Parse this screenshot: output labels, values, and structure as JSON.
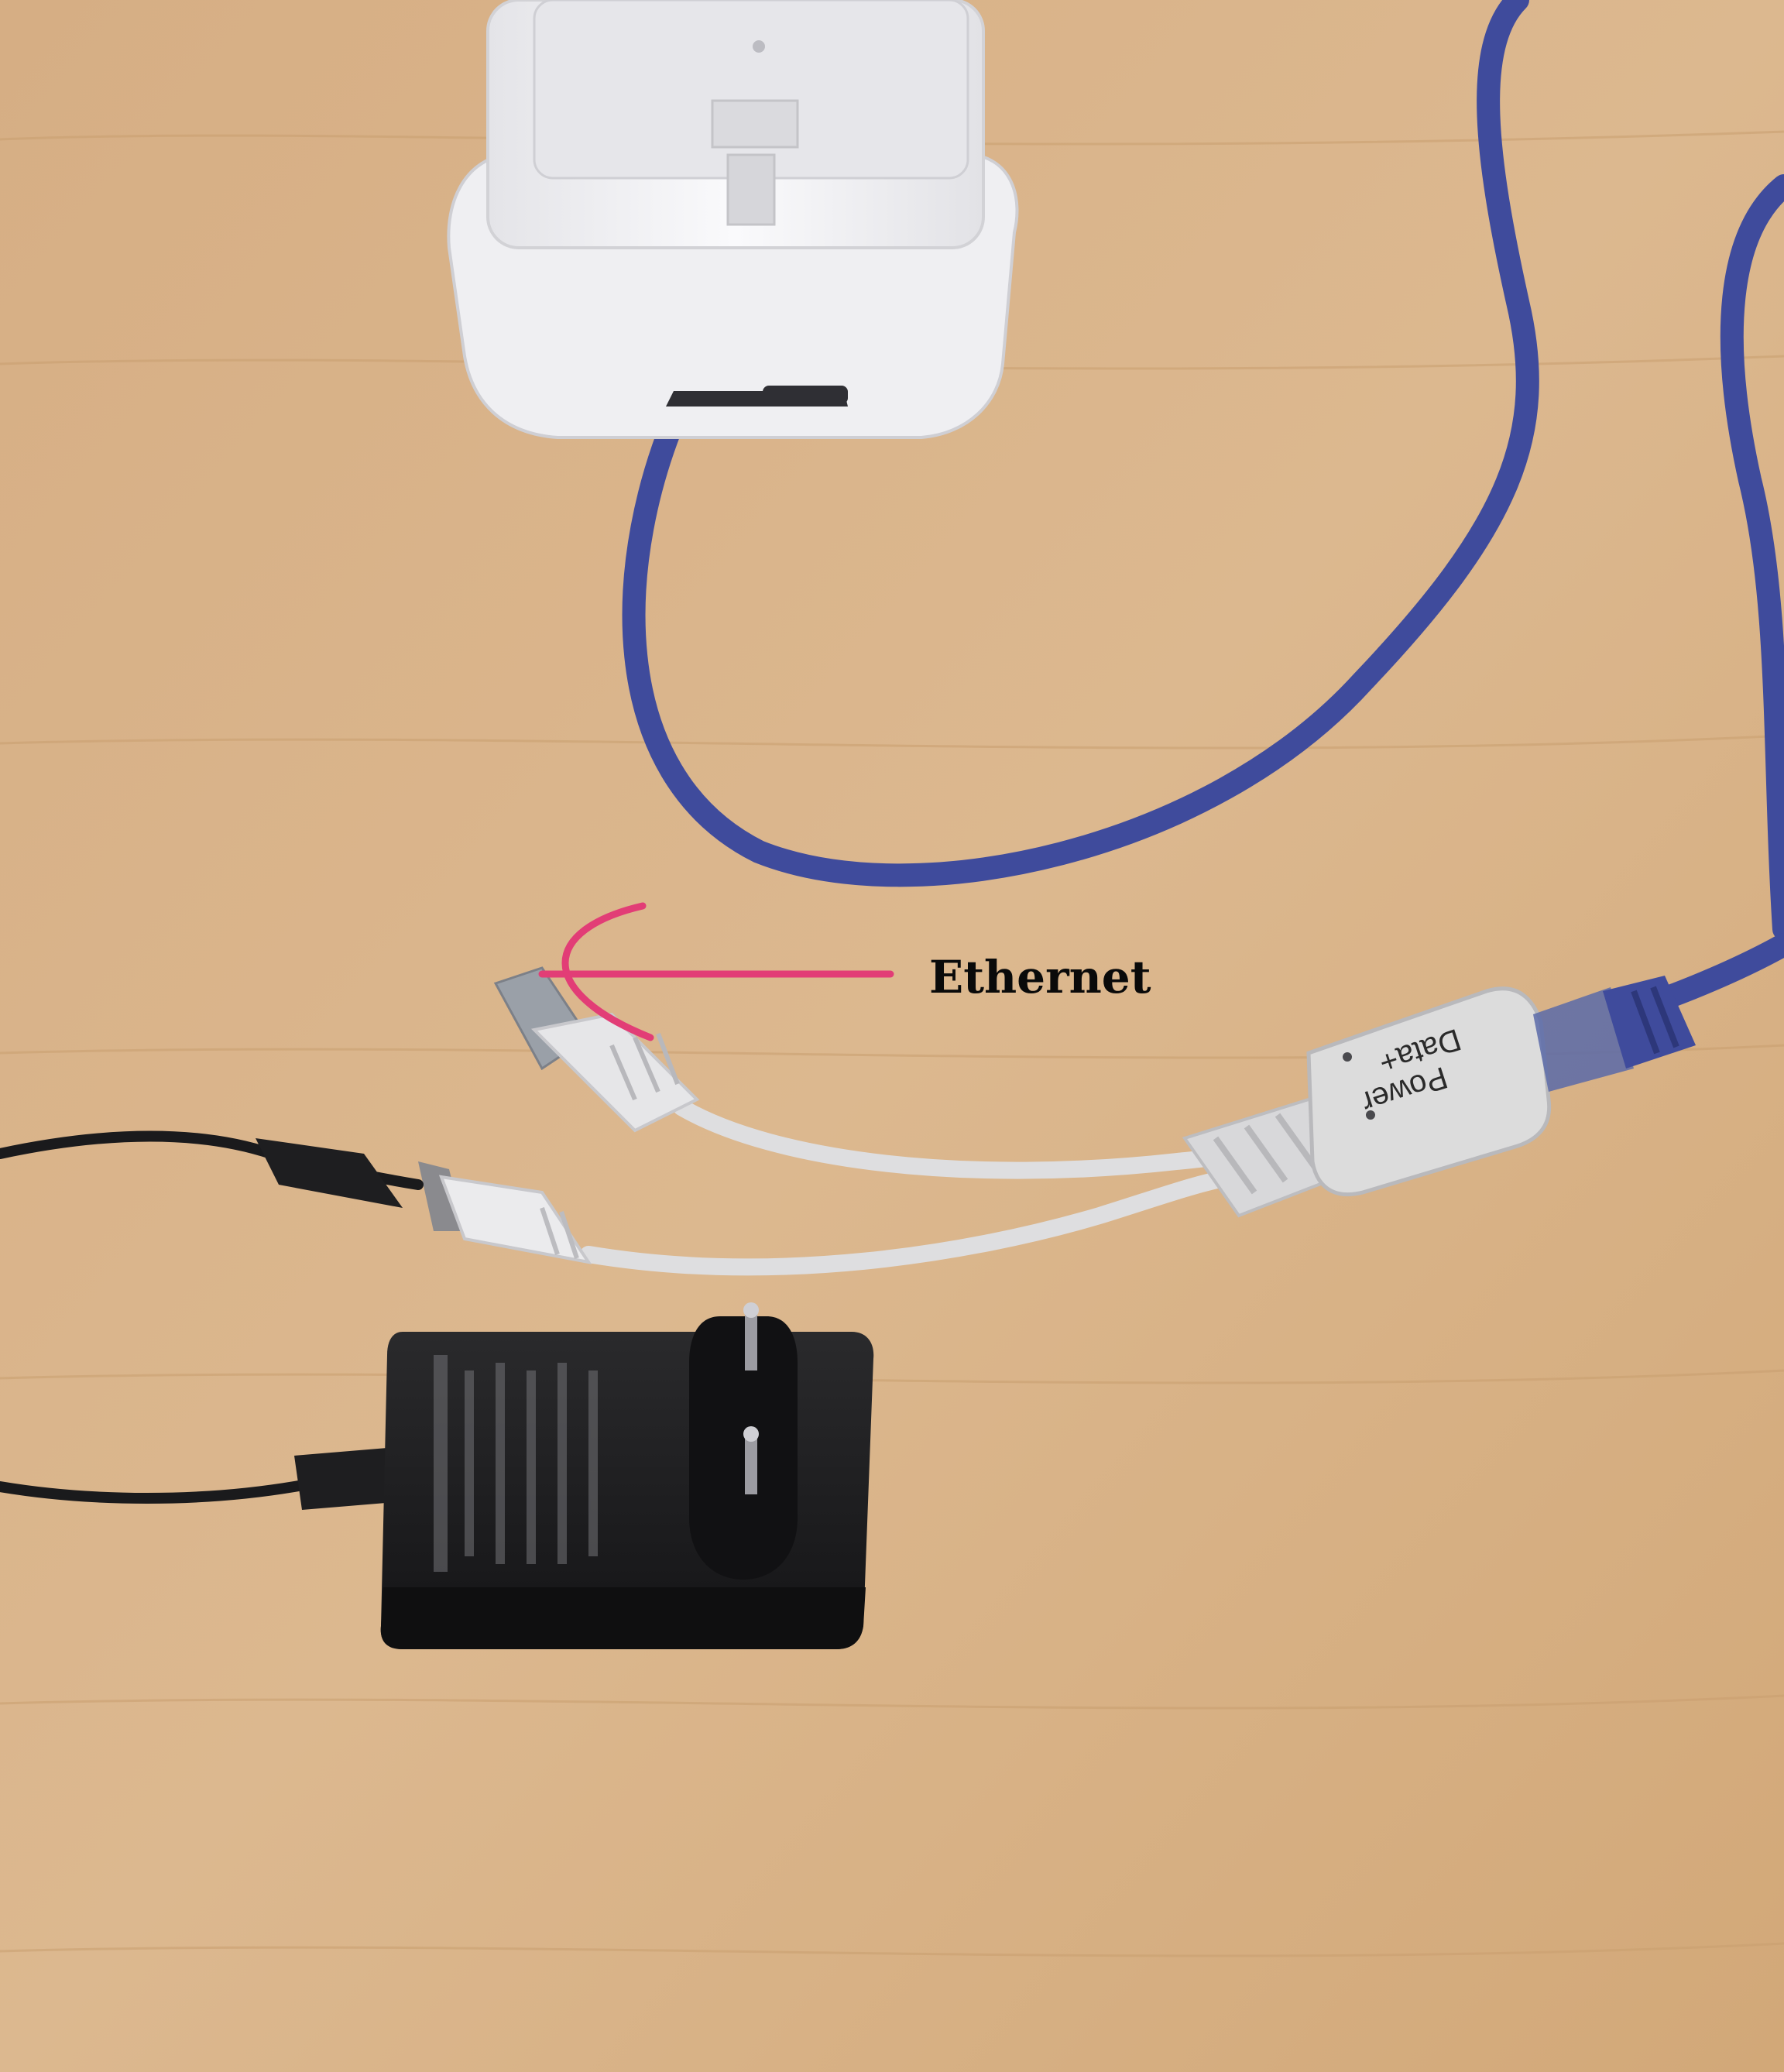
{
  "annotation": {
    "label": "Ethernet",
    "arrow_color": "#e23d76"
  },
  "splitter": {
    "line1": "Data+",
    "line2": "Power"
  },
  "colors": {
    "table": "#d9b48a",
    "camera": "#f1f1f3",
    "ethernet_cable": "#3f4b9c",
    "splitter": "#dcdcdc",
    "adapter": "#1c1c1e"
  }
}
